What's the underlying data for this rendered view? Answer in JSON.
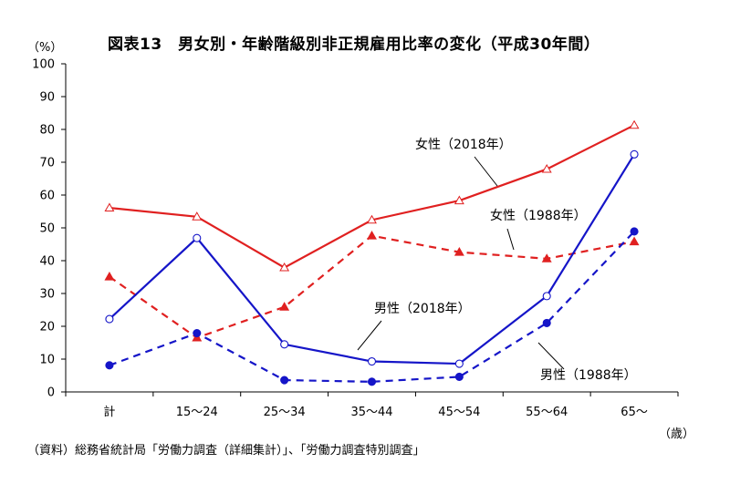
{
  "chart_data": {
    "type": "line",
    "title": "図表13　男女別・年齢階級別非正規雇用比率の変化（平成30年間）",
    "ylabel": "（%）",
    "xlabel": "（歳）",
    "ylim": [
      0,
      100
    ],
    "yticks": [
      0,
      10,
      20,
      30,
      40,
      50,
      60,
      70,
      80,
      90,
      100
    ],
    "grid": false,
    "categories": [
      "計",
      "15〜24",
      "25〜34",
      "35〜44",
      "45〜54",
      "55〜64",
      "65〜"
    ],
    "series": [
      {
        "name": "女性（2018年）",
        "color": "#e02020",
        "dash": false,
        "marker": "triangle-open",
        "values": [
          56.1,
          53.4,
          37.9,
          52.4,
          58.3,
          67.9,
          81.3
        ]
      },
      {
        "name": "女性（1988年）",
        "color": "#e02020",
        "dash": true,
        "marker": "triangle-filled",
        "values": [
          35.1,
          16.5,
          25.9,
          47.6,
          42.6,
          40.6,
          45.8
        ]
      },
      {
        "name": "男性（2018年）",
        "color": "#1515c8",
        "dash": false,
        "marker": "circle-open",
        "values": [
          22.2,
          46.9,
          14.5,
          9.3,
          8.6,
          29.2,
          72.4
        ]
      },
      {
        "name": "男性（1988年）",
        "color": "#1515c8",
        "dash": true,
        "marker": "circle-filled",
        "values": [
          8.1,
          17.9,
          3.6,
          3.1,
          4.6,
          21.0,
          48.9
        ]
      }
    ],
    "annotations": [
      "女性（2018年）",
      "女性（1988年）",
      "男性（2018年）",
      "男性（1988年）"
    ]
  },
  "source_note": "（資料）総務省統計局「労働力調査（詳細集計）」、「労働力調査特別調査」"
}
